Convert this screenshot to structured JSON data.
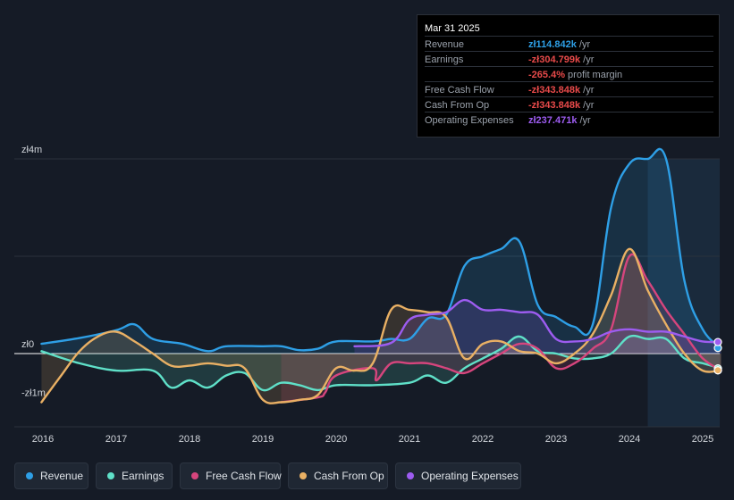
{
  "tooltip": {
    "date": "Mar 31 2025",
    "rows": [
      {
        "label": "Revenue",
        "value": "zł114.842k",
        "unit": " /yr",
        "color": "#2e9fe6"
      },
      {
        "label": "Earnings",
        "value": "-zł304.799k",
        "unit": " /yr",
        "color": "#e84a4a"
      },
      {
        "label": "",
        "value": "-265.4%",
        "unit": " profit margin",
        "color": "#e84a4a"
      },
      {
        "label": "Free Cash Flow",
        "value": "-zł343.848k",
        "unit": " /yr",
        "color": "#e84a4a"
      },
      {
        "label": "Cash From Op",
        "value": "-zł343.848k",
        "unit": " /yr",
        "color": "#e84a4a"
      },
      {
        "label": "Operating Expenses",
        "value": "zł237.471k",
        "unit": " /yr",
        "color": "#9d5cf0"
      }
    ]
  },
  "legend": [
    {
      "label": "Revenue",
      "color": "#2e9fe6"
    },
    {
      "label": "Earnings",
      "color": "#5fe0c8"
    },
    {
      "label": "Free Cash Flow",
      "color": "#d6457d"
    },
    {
      "label": "Cash From Op",
      "color": "#e9b064"
    },
    {
      "label": "Operating Expenses",
      "color": "#9d5cf0"
    }
  ],
  "chart_data": {
    "type": "area",
    "y_tick_labels": [
      "zł4m",
      "zł0",
      "-zł1m"
    ],
    "ylim": [
      -1.2,
      4.0
    ],
    "x_tick_labels": [
      "2016",
      "2017",
      "2018",
      "2019",
      "2020",
      "2021",
      "2022",
      "2023",
      "2024",
      "2025"
    ],
    "xlim": [
      2015.6,
      2025.25
    ],
    "forecast_shade_start": 2024.25,
    "series": [
      {
        "name": "Revenue",
        "color": "#2e9fe6",
        "x": [
          2015.98,
          2016.5,
          2017.0,
          2017.25,
          2017.5,
          2017.9,
          2018.25,
          2018.5,
          2019.0,
          2019.25,
          2019.5,
          2019.75,
          2020.0,
          2020.5,
          2020.75,
          2021.0,
          2021.25,
          2021.5,
          2021.75,
          2022.0,
          2022.25,
          2022.5,
          2022.75,
          2023.0,
          2023.25,
          2023.5,
          2023.75,
          2024.0,
          2024.25,
          2024.5,
          2024.75,
          2025.0,
          2025.25
        ],
        "y": [
          0.2,
          0.32,
          0.48,
          0.6,
          0.3,
          0.2,
          0.05,
          0.15,
          0.15,
          0.15,
          0.07,
          0.1,
          0.25,
          0.25,
          0.3,
          0.3,
          0.72,
          0.8,
          1.8,
          2.0,
          2.15,
          2.3,
          1.0,
          0.75,
          0.55,
          0.6,
          3.0,
          3.9,
          4.0,
          4.0,
          1.5,
          0.5,
          0.115
        ]
      },
      {
        "name": "Earnings",
        "color": "#5fe0c8",
        "x": [
          2015.98,
          2016.5,
          2017.0,
          2017.5,
          2017.75,
          2018.0,
          2018.25,
          2018.5,
          2018.75,
          2019.0,
          2019.25,
          2019.5,
          2019.75,
          2020.0,
          2020.5,
          2021.0,
          2021.25,
          2021.5,
          2021.75,
          2022.0,
          2022.25,
          2022.5,
          2022.75,
          2023.0,
          2023.25,
          2023.5,
          2023.75,
          2024.0,
          2024.25,
          2024.5,
          2024.75,
          2025.0,
          2025.25
        ],
        "y": [
          0.05,
          -0.2,
          -0.35,
          -0.35,
          -0.7,
          -0.55,
          -0.7,
          -0.45,
          -0.4,
          -0.75,
          -0.6,
          -0.65,
          -0.75,
          -0.65,
          -0.65,
          -0.6,
          -0.45,
          -0.6,
          -0.3,
          -0.1,
          0.1,
          0.35,
          0.05,
          0.0,
          -0.1,
          -0.1,
          0.0,
          0.35,
          0.3,
          0.3,
          -0.1,
          -0.2,
          -0.305
        ]
      },
      {
        "name": "Free Cash Flow",
        "color": "#d6457d",
        "x": [
          2019.25,
          2019.75,
          2019.85,
          2020.0,
          2020.5,
          2020.55,
          2020.75,
          2021.0,
          2021.25,
          2021.5,
          2021.75,
          2022.0,
          2022.25,
          2022.5,
          2022.75,
          2023.0,
          2023.25,
          2023.5,
          2023.75,
          2024.0,
          2024.25,
          2024.5,
          2024.75,
          2025.0,
          2025.25
        ],
        "y": [
          -1.0,
          -0.9,
          -0.8,
          -0.45,
          -0.3,
          -0.55,
          -0.2,
          -0.2,
          -0.2,
          -0.3,
          -0.4,
          -0.2,
          0.0,
          0.2,
          0.1,
          -0.3,
          -0.2,
          0.1,
          0.5,
          2.0,
          1.5,
          0.9,
          0.4,
          -0.1,
          -0.344
        ]
      },
      {
        "name": "Cash From Op",
        "color": "#e9b064",
        "x": [
          2015.98,
          2016.25,
          2016.5,
          2016.75,
          2017.0,
          2017.25,
          2017.5,
          2017.75,
          2018.0,
          2018.25,
          2018.5,
          2018.75,
          2019.0,
          2019.25,
          2019.5,
          2019.75,
          2020.0,
          2020.25,
          2020.5,
          2020.75,
          2021.0,
          2021.25,
          2021.5,
          2021.75,
          2022.0,
          2022.25,
          2022.5,
          2022.75,
          2023.0,
          2023.25,
          2023.5,
          2023.75,
          2024.0,
          2024.25,
          2024.5,
          2024.75,
          2025.0,
          2025.25
        ],
        "y": [
          -1.0,
          -0.45,
          0.05,
          0.35,
          0.45,
          0.25,
          0.0,
          -0.25,
          -0.25,
          -0.2,
          -0.25,
          -0.3,
          -0.95,
          -1.0,
          -0.95,
          -0.85,
          -0.3,
          -0.35,
          -0.2,
          0.9,
          0.9,
          0.85,
          0.75,
          -0.1,
          0.2,
          0.25,
          0.05,
          0.0,
          -0.2,
          0.0,
          0.4,
          1.2,
          2.15,
          1.3,
          0.6,
          0.0,
          -0.35,
          -0.344
        ]
      },
      {
        "name": "Operating Expenses",
        "color": "#9d5cf0",
        "x": [
          2020.25,
          2020.75,
          2021.0,
          2021.25,
          2021.5,
          2021.75,
          2022.0,
          2022.25,
          2022.5,
          2022.75,
          2023.0,
          2023.25,
          2023.5,
          2023.75,
          2024.0,
          2024.25,
          2024.5,
          2024.75,
          2025.0,
          2025.25
        ],
        "y": [
          0.15,
          0.22,
          0.7,
          0.8,
          0.85,
          1.1,
          0.9,
          0.9,
          0.85,
          0.8,
          0.3,
          0.25,
          0.3,
          0.45,
          0.5,
          0.45,
          0.45,
          0.35,
          0.25,
          0.237
        ]
      }
    ]
  }
}
